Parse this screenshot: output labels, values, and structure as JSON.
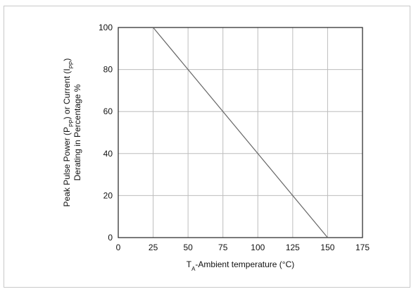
{
  "chart_data": {
    "type": "line",
    "title": "",
    "xlabel": "TA-Ambient temperature (°C)",
    "xlabel_main": "T",
    "xlabel_sub": "A",
    "xlabel_rest": "-Ambient temperature (°C)",
    "ylabel": "Peak Pulse Power (PPP) or Current (IPP) Derating in Percentage %",
    "ylabel_line1_a": "Peak Pulse Power (P",
    "ylabel_line1_sub1": "PP",
    "ylabel_line1_b": ") or Current (I",
    "ylabel_line1_sub2": "PP",
    "ylabel_line1_c": ")",
    "ylabel_line2": "Derating in Percentage %",
    "xlim": [
      0,
      175
    ],
    "ylim": [
      0,
      100
    ],
    "xticks": [
      0,
      25,
      50,
      75,
      100,
      125,
      150,
      175
    ],
    "yticks": [
      0,
      20,
      40,
      60,
      80,
      100
    ],
    "grid": true,
    "series": [
      {
        "x": [
          25,
          150
        ],
        "y": [
          100,
          0
        ]
      }
    ]
  }
}
